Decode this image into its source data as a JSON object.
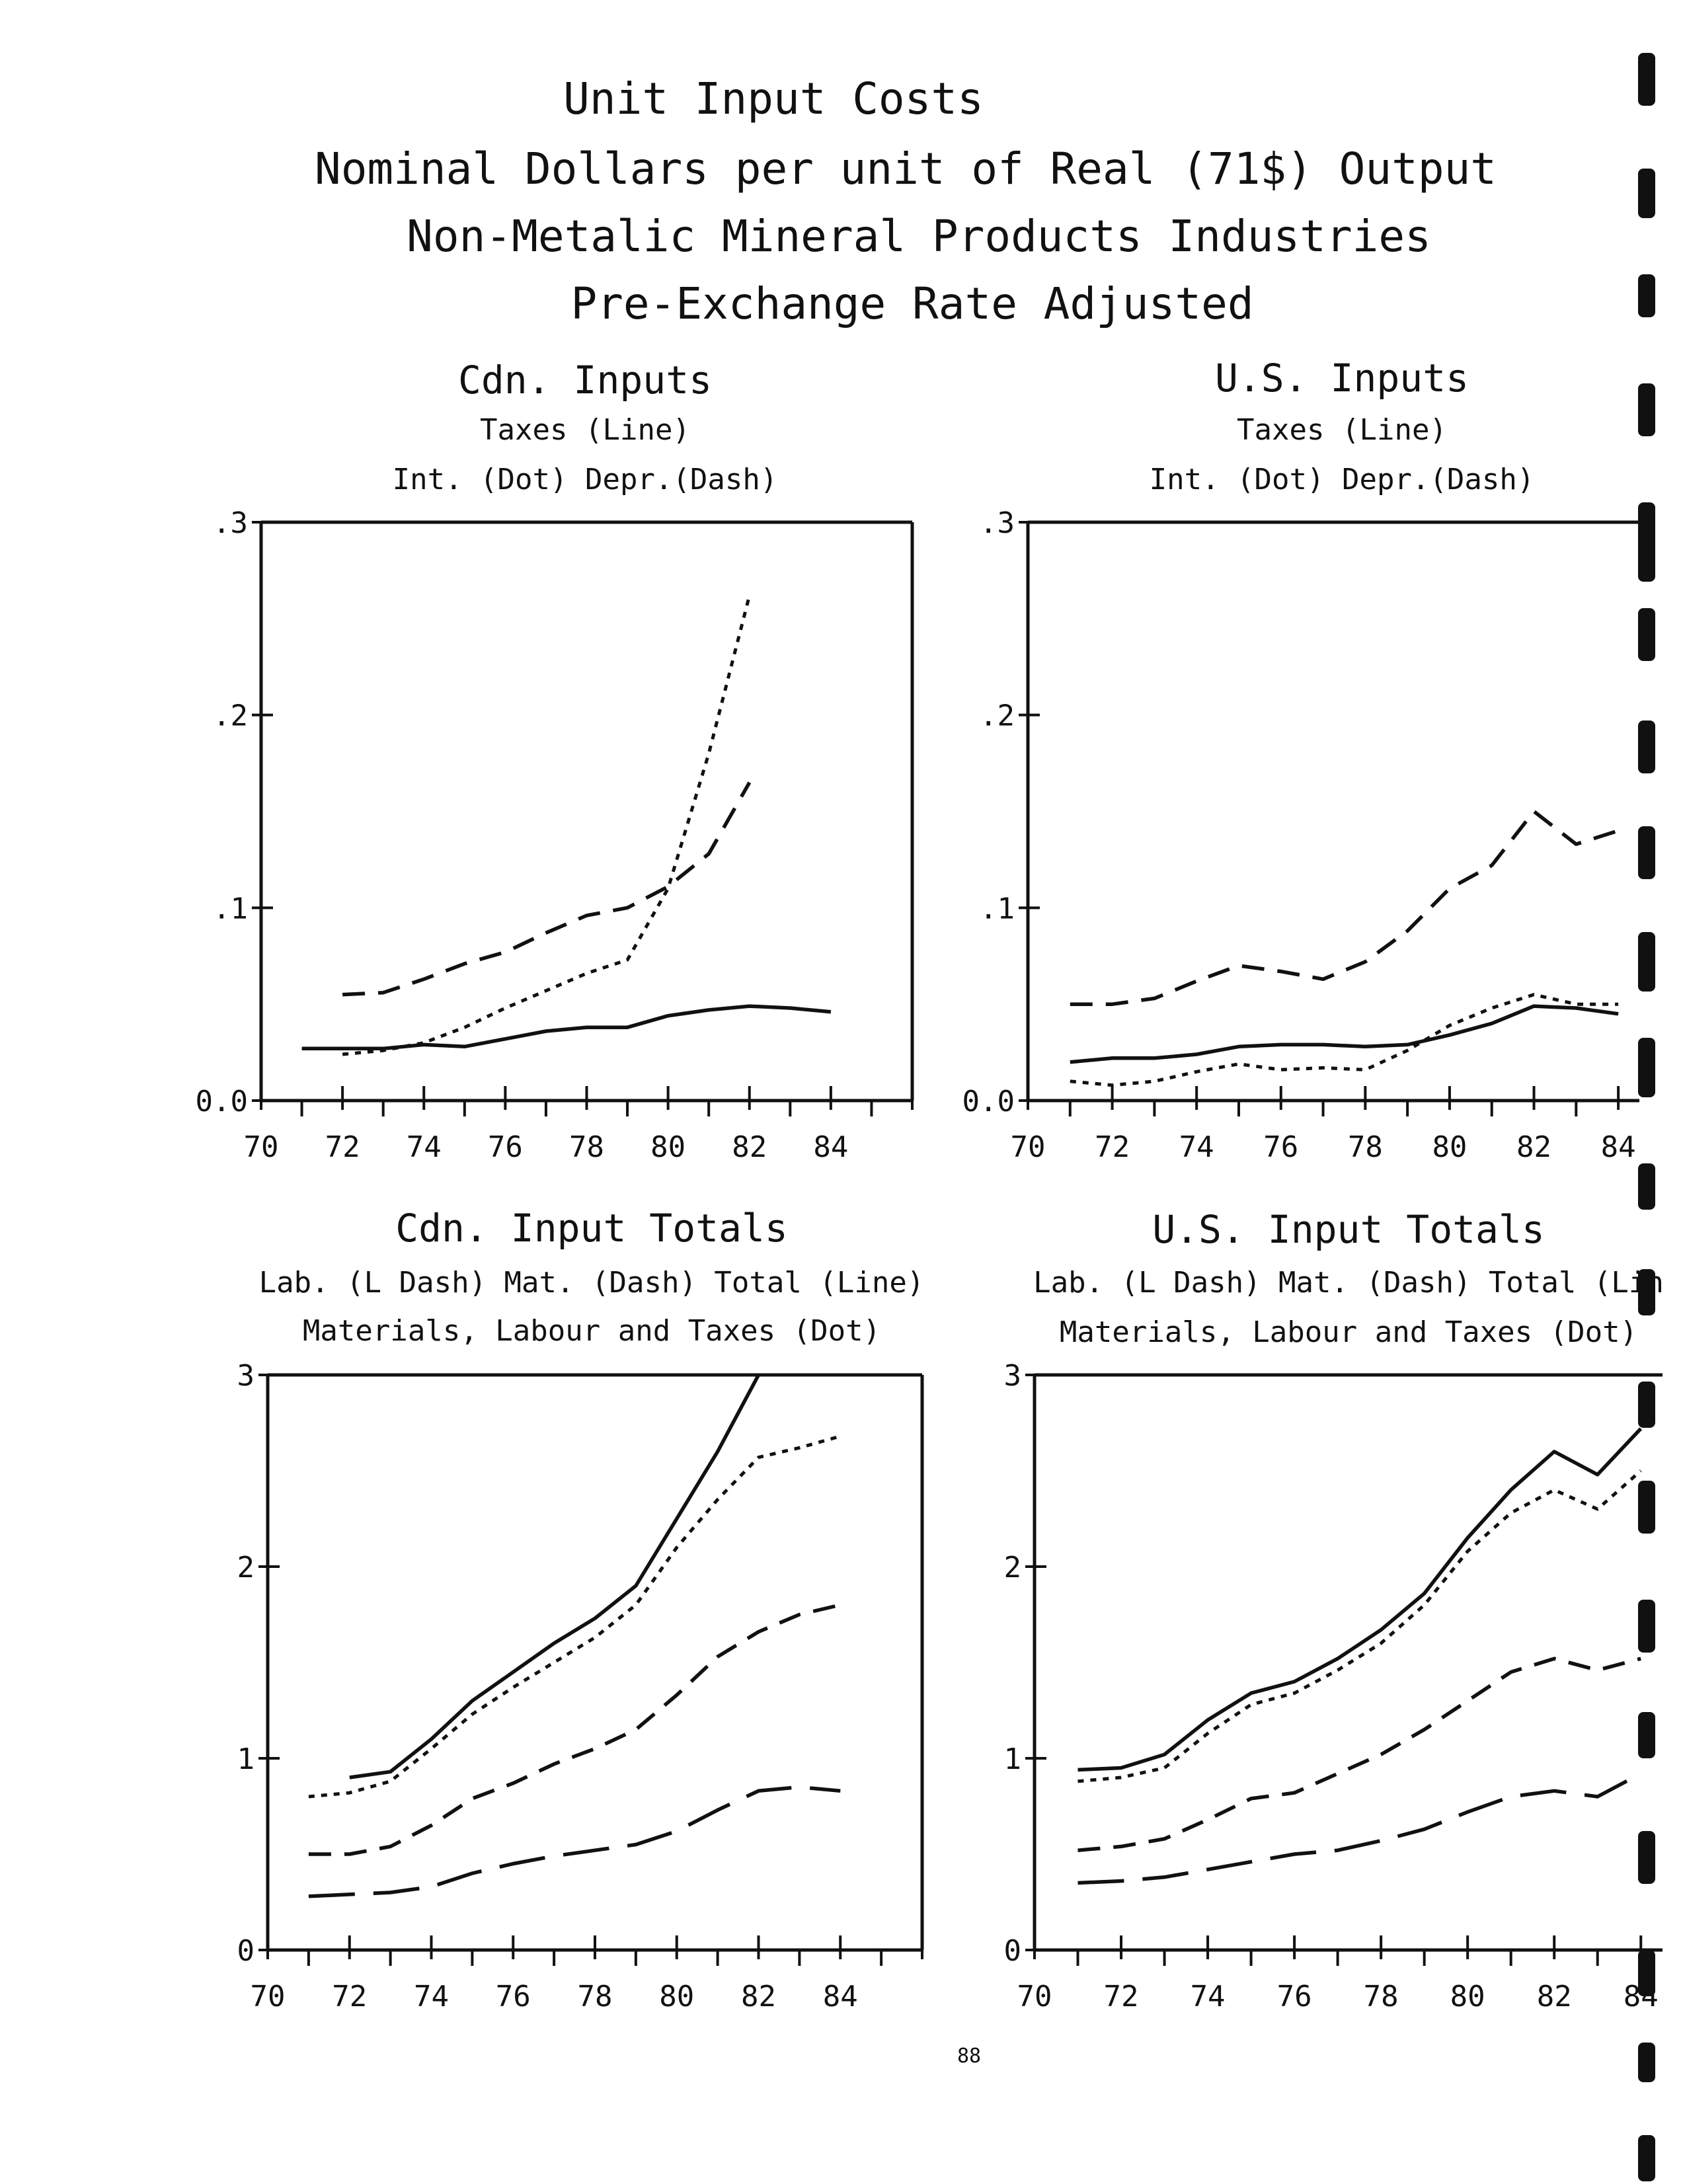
{
  "page": {
    "title_lines": [
      "Unit Input Costs",
      "Nominal Dollars per unit of Real (71$) Output",
      "Non-Metalic Mineral Products Industries",
      "Pre-Exchange Rate Adjusted"
    ],
    "page_number": "88"
  },
  "chart_data": [
    {
      "type": "line",
      "title": "Cdn. Inputs",
      "legend_lines": [
        "Taxes (Line)",
        "Int. (Dot)   Depr.(Dash)"
      ],
      "x_ticks": [
        "70",
        "72",
        "74",
        "76",
        "78",
        "80",
        "82",
        "84"
      ],
      "y_ticks": [
        "0.0",
        ".1",
        ".2",
        ".3"
      ],
      "xlim": [
        70,
        86
      ],
      "ylim": [
        0,
        0.3
      ],
      "series": [
        {
          "name": "Taxes",
          "style": "solid",
          "x": [
            71,
            72,
            73,
            74,
            75,
            76,
            77,
            78,
            79,
            80,
            81,
            82,
            83,
            84
          ],
          "y": [
            0.027,
            0.027,
            0.027,
            0.029,
            0.028,
            0.032,
            0.036,
            0.038,
            0.038,
            0.044,
            0.047,
            0.049,
            0.048,
            0.046
          ]
        },
        {
          "name": "Int.",
          "style": "dot",
          "x": [
            72,
            73,
            74,
            75,
            76,
            77,
            78,
            79,
            80,
            81,
            82
          ],
          "y": [
            0.024,
            0.026,
            0.03,
            0.038,
            0.048,
            0.057,
            0.066,
            0.073,
            0.11,
            0.18,
            0.262
          ]
        },
        {
          "name": "Depr.",
          "style": "dash",
          "x": [
            72,
            73,
            74,
            75,
            76,
            77,
            78,
            79,
            80,
            81,
            82
          ],
          "y": [
            0.055,
            0.056,
            0.063,
            0.071,
            0.077,
            0.087,
            0.096,
            0.1,
            0.111,
            0.128,
            0.165
          ]
        }
      ]
    },
    {
      "type": "line",
      "title": "U.S. Inputs",
      "legend_lines": [
        "Taxes (Line)",
        "Int. (Dot)   Depr.(Dash)"
      ],
      "x_ticks": [
        "70",
        "72",
        "74",
        "76",
        "78",
        "80",
        "82",
        "84"
      ],
      "y_ticks": [
        "0.0",
        ".1",
        ".2",
        ".3"
      ],
      "xlim": [
        70,
        84.5
      ],
      "ylim": [
        0,
        0.3
      ],
      "series": [
        {
          "name": "Taxes",
          "style": "solid",
          "x": [
            71,
            72,
            73,
            74,
            75,
            76,
            77,
            78,
            79,
            80,
            81,
            82,
            83,
            84
          ],
          "y": [
            0.02,
            0.022,
            0.022,
            0.024,
            0.028,
            0.029,
            0.029,
            0.028,
            0.029,
            0.034,
            0.04,
            0.049,
            0.048,
            0.045
          ]
        },
        {
          "name": "Int.",
          "style": "dot",
          "x": [
            71,
            72,
            73,
            74,
            75,
            76,
            77,
            78,
            79,
            80,
            81,
            82,
            83,
            84
          ],
          "y": [
            0.01,
            0.008,
            0.01,
            0.015,
            0.019,
            0.016,
            0.017,
            0.016,
            0.026,
            0.039,
            0.048,
            0.055,
            0.05,
            0.05
          ]
        },
        {
          "name": "Depr.",
          "style": "dash",
          "x": [
            71,
            72,
            73,
            74,
            75,
            76,
            77,
            78,
            79,
            80,
            81,
            82,
            83,
            84
          ],
          "y": [
            0.05,
            0.05,
            0.053,
            0.062,
            0.07,
            0.067,
            0.063,
            0.072,
            0.088,
            0.11,
            0.122,
            0.15,
            0.133,
            0.14
          ]
        }
      ]
    },
    {
      "type": "line",
      "title": "Cdn. Input Totals",
      "legend_lines": [
        "Lab. (L Dash)   Mat. (Dash)   Total (Line)",
        "Materials, Labour and Taxes (Dot)"
      ],
      "x_ticks": [
        "70",
        "72",
        "74",
        "76",
        "78",
        "80",
        "82",
        "84"
      ],
      "y_ticks": [
        "0",
        "1",
        "2",
        "3"
      ],
      "xlim": [
        70,
        86
      ],
      "ylim": [
        0,
        3
      ],
      "series": [
        {
          "name": "Lab.",
          "style": "long-dash",
          "x": [
            71,
            72,
            73,
            74,
            75,
            76,
            77,
            78,
            79,
            80,
            81,
            82,
            83,
            84
          ],
          "y": [
            0.28,
            0.29,
            0.3,
            0.33,
            0.4,
            0.45,
            0.49,
            0.52,
            0.55,
            0.62,
            0.73,
            0.83,
            0.85,
            0.83
          ]
        },
        {
          "name": "Mat.",
          "style": "dash",
          "x": [
            71,
            72,
            73,
            74,
            75,
            76,
            77,
            78,
            79,
            80,
            81,
            82,
            83,
            84
          ],
          "y": [
            0.5,
            0.5,
            0.54,
            0.65,
            0.79,
            0.87,
            0.97,
            1.05,
            1.15,
            1.33,
            1.53,
            1.66,
            1.75,
            1.8
          ]
        },
        {
          "name": "Total",
          "style": "solid",
          "x": [
            72,
            73,
            74,
            75,
            76,
            77,
            78,
            79,
            80,
            81,
            82
          ],
          "y": [
            0.9,
            0.93,
            1.1,
            1.3,
            1.45,
            1.6,
            1.73,
            1.9,
            2.25,
            2.6,
            3.0
          ]
        },
        {
          "name": "Materials, Labour and Taxes",
          "style": "dot",
          "x": [
            71,
            72,
            73,
            74,
            75,
            76,
            77,
            78,
            79,
            80,
            81,
            82,
            83,
            84
          ],
          "y": [
            0.8,
            0.82,
            0.88,
            1.05,
            1.23,
            1.37,
            1.5,
            1.63,
            1.8,
            2.1,
            2.35,
            2.57,
            2.62,
            2.68
          ]
        }
      ]
    },
    {
      "type": "line",
      "title": "U.S. Input Totals",
      "legend_lines": [
        "Lab. (L Dash)   Mat. (Dash)   Total (Lin",
        "Materials, Labour and Taxes (Dot)"
      ],
      "x_ticks": [
        "70",
        "72",
        "74",
        "76",
        "78",
        "80",
        "82",
        "84"
      ],
      "y_ticks": [
        "0",
        "1",
        "2",
        "3"
      ],
      "xlim": [
        70,
        84.5
      ],
      "ylim": [
        0,
        3
      ],
      "series": [
        {
          "name": "Lab.",
          "style": "long-dash",
          "x": [
            71,
            72,
            73,
            74,
            75,
            76,
            77,
            78,
            79,
            80,
            81,
            82,
            83,
            84
          ],
          "y": [
            0.35,
            0.36,
            0.38,
            0.42,
            0.46,
            0.5,
            0.52,
            0.57,
            0.63,
            0.72,
            0.8,
            0.83,
            0.8,
            0.92
          ]
        },
        {
          "name": "Mat.",
          "style": "dash",
          "x": [
            71,
            72,
            73,
            74,
            75,
            76,
            77,
            78,
            79,
            80,
            81,
            82,
            83,
            84
          ],
          "y": [
            0.52,
            0.54,
            0.58,
            0.68,
            0.79,
            0.82,
            0.92,
            1.02,
            1.15,
            1.3,
            1.45,
            1.52,
            1.46,
            1.52
          ]
        },
        {
          "name": "Total",
          "style": "solid",
          "x": [
            71,
            72,
            73,
            74,
            75,
            76,
            77,
            78,
            79,
            80,
            81,
            82,
            83,
            84
          ],
          "y": [
            0.94,
            0.95,
            1.02,
            1.2,
            1.34,
            1.4,
            1.52,
            1.67,
            1.86,
            2.15,
            2.4,
            2.6,
            2.48,
            2.72
          ]
        },
        {
          "name": "Materials, Labour and Taxes",
          "style": "dot",
          "x": [
            71,
            72,
            73,
            74,
            75,
            76,
            77,
            78,
            79,
            80,
            81,
            82,
            83,
            84
          ],
          "y": [
            0.88,
            0.9,
            0.95,
            1.13,
            1.28,
            1.34,
            1.46,
            1.6,
            1.8,
            2.08,
            2.28,
            2.4,
            2.3,
            2.5
          ]
        }
      ]
    }
  ]
}
